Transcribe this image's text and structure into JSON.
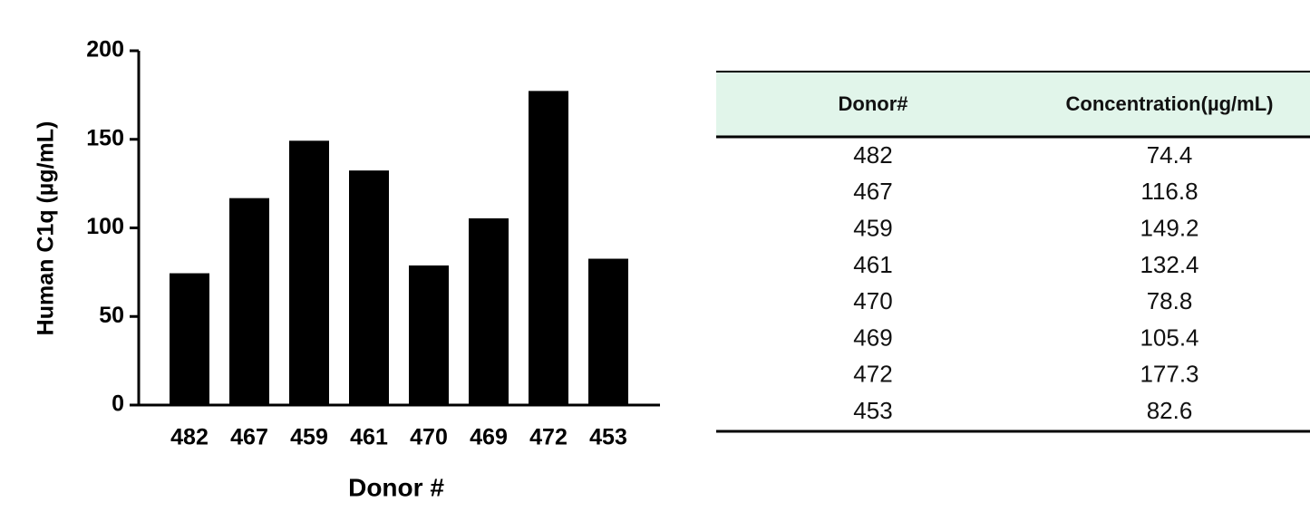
{
  "chart_data": {
    "type": "bar",
    "xlabel": "Donor #",
    "ylabel": "Human C1q (µg/mL)",
    "categories": [
      "482",
      "467",
      "459",
      "461",
      "470",
      "469",
      "472",
      "453"
    ],
    "values": [
      74.4,
      116.8,
      149.2,
      132.4,
      78.8,
      105.4,
      177.3,
      82.6
    ],
    "color": "#000000",
    "ylim": [
      0,
      200
    ],
    "yticks": [
      0,
      50,
      100,
      150,
      200
    ],
    "grid": false
  },
  "table": {
    "columns": [
      "Donor#",
      "Concentration(µg/mL)"
    ]
  }
}
